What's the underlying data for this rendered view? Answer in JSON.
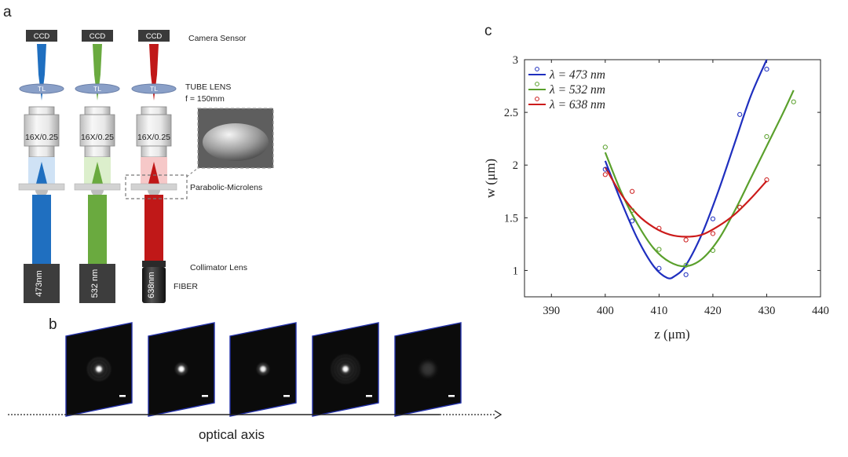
{
  "panel_a": {
    "letter": "a",
    "labels": {
      "camera_sensor": "Camera Sensor",
      "tube_lens": "TUBE LENS",
      "focal_length": "f = 150mm",
      "microlens": "Parabolic-Microlens",
      "collimator": "Collimator Lens",
      "fiber": "FIBER"
    },
    "columns": [
      {
        "ccd": "CCD",
        "tl": "TL",
        "objective": "16X/0.25",
        "source": "473nm",
        "color": "#1f6fc0",
        "light": "#cfe2f5"
      },
      {
        "ccd": "CCD",
        "tl": "TL",
        "objective": "16X/0.25",
        "source": "532 nm",
        "color": "#6aaa3f",
        "light": "#dcefcc"
      },
      {
        "ccd": "CCD",
        "tl": "TL",
        "objective": "16X/0.25",
        "source": "638nm",
        "color": "#c01818",
        "light": "#f6c8c8"
      }
    ]
  },
  "panel_b": {
    "letter": "b",
    "axis_label": "optical axis",
    "frames": [
      {
        "name": "focus-frame-1",
        "rings": 3,
        "brightness": 1.0
      },
      {
        "name": "focus-frame-2",
        "rings": 1,
        "brightness": 1.0
      },
      {
        "name": "focus-frame-3",
        "rings": 1,
        "brightness": 0.95
      },
      {
        "name": "focus-frame-4",
        "rings": 4,
        "brightness": 1.0
      },
      {
        "name": "focus-frame-5",
        "rings": 0,
        "brightness": 0.25
      }
    ]
  },
  "panel_c": {
    "letter": "c"
  },
  "chart_data": {
    "type": "scatter",
    "xlabel": "z (μm)",
    "ylabel": "w (μm)",
    "xlim": [
      385,
      440
    ],
    "ylim": [
      0.75,
      3
    ],
    "xticks": [
      390,
      400,
      410,
      420,
      430,
      440
    ],
    "yticks": [
      1,
      1.5,
      2,
      2.5,
      3
    ],
    "legend_position": "top-left",
    "series": [
      {
        "name": "λ = 473 nm",
        "color": "#1f2fbf",
        "points": [
          [
            400,
            1.96
          ],
          [
            405,
            1.47
          ],
          [
            410,
            1.02
          ],
          [
            415,
            0.96
          ],
          [
            420,
            1.49
          ],
          [
            425,
            2.48
          ],
          [
            430,
            2.91
          ]
        ],
        "fit": [
          [
            400,
            2.04
          ],
          [
            403,
            1.65
          ],
          [
            406,
            1.3
          ],
          [
            409,
            1.04
          ],
          [
            411.5,
            0.93
          ],
          [
            413,
            0.95
          ],
          [
            415,
            1.05
          ],
          [
            418,
            1.35
          ],
          [
            421,
            1.75
          ],
          [
            424,
            2.2
          ],
          [
            427,
            2.65
          ],
          [
            430,
            3.0
          ]
        ]
      },
      {
        "name": "λ = 532 nm",
        "color": "#5aa02c",
        "points": [
          [
            400,
            2.17
          ],
          [
            405,
            1.57
          ],
          [
            410,
            1.2
          ],
          [
            415,
            1.05
          ],
          [
            420,
            1.19
          ],
          [
            425,
            1.6
          ],
          [
            430,
            2.27
          ],
          [
            435,
            2.6
          ]
        ],
        "fit": [
          [
            400,
            2.12
          ],
          [
            403,
            1.74
          ],
          [
            406,
            1.44
          ],
          [
            409,
            1.21
          ],
          [
            412,
            1.08
          ],
          [
            415,
            1.04
          ],
          [
            418,
            1.11
          ],
          [
            421,
            1.29
          ],
          [
            424,
            1.56
          ],
          [
            427,
            1.87
          ],
          [
            430,
            2.18
          ],
          [
            433,
            2.49
          ],
          [
            435,
            2.71
          ]
        ]
      },
      {
        "name": "λ = 638 nm",
        "color": "#cc1b1b",
        "points": [
          [
            400,
            1.91
          ],
          [
            405,
            1.75
          ],
          [
            410,
            1.4
          ],
          [
            415,
            1.29
          ],
          [
            420,
            1.35
          ],
          [
            425,
            1.6
          ],
          [
            430,
            1.86
          ]
        ],
        "fit": [
          [
            400,
            1.98
          ],
          [
            403,
            1.72
          ],
          [
            406,
            1.53
          ],
          [
            409,
            1.41
          ],
          [
            412,
            1.34
          ],
          [
            415,
            1.32
          ],
          [
            418,
            1.34
          ],
          [
            421,
            1.42
          ],
          [
            424,
            1.53
          ],
          [
            427,
            1.68
          ],
          [
            430,
            1.85
          ]
        ]
      }
    ]
  }
}
